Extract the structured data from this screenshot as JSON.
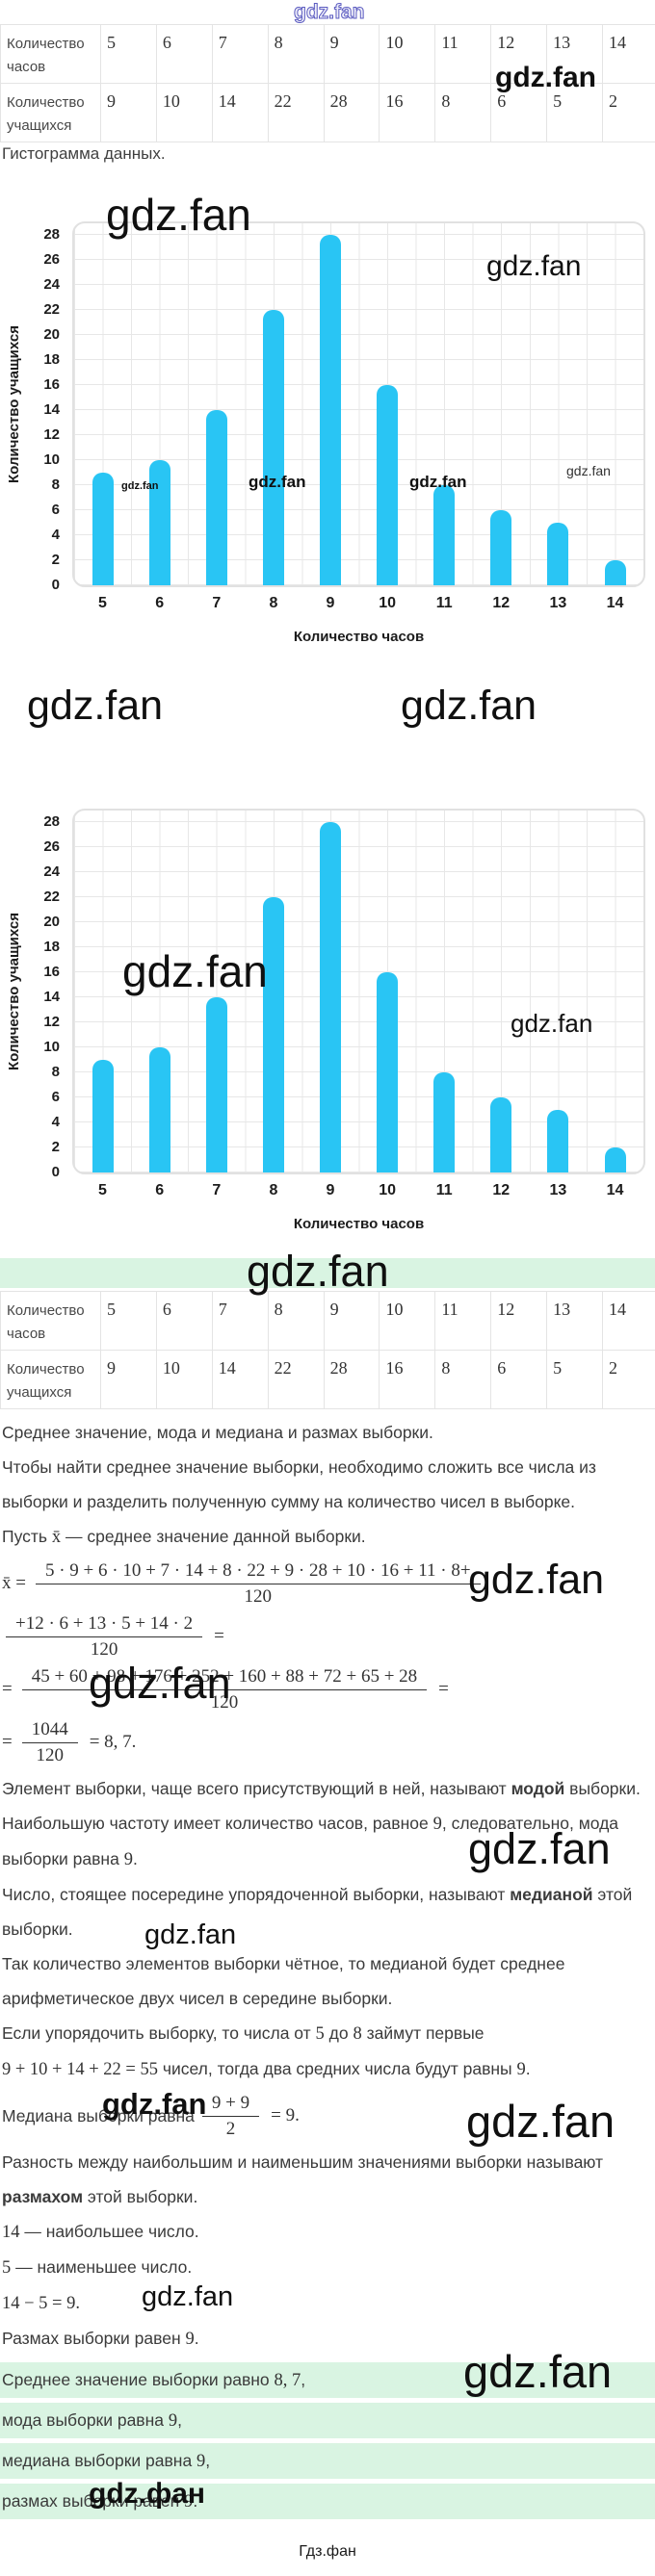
{
  "watermark": {
    "text": "gdz.fan",
    "cyrillic": "gdz.фан",
    "footer": "Гдз.фан"
  },
  "colors": {
    "bar": "#29c5f4",
    "grid": "#e7e7e7",
    "green_highlight": "#d9f4e2",
    "table_border": "#e4e4e4",
    "text": "#3b3b3b"
  },
  "table": {
    "row1_label": "Количество часов",
    "row2_label": "Количество учащихся",
    "hours": [
      5,
      6,
      7,
      8,
      9,
      10,
      11,
      12,
      13,
      14
    ],
    "students": [
      9,
      10,
      14,
      22,
      28,
      16,
      8,
      6,
      5,
      2
    ]
  },
  "caption": "Гистограмма данных.",
  "chart_data": [
    {
      "type": "bar",
      "categories": [
        5,
        6,
        7,
        8,
        9,
        10,
        11,
        12,
        13,
        14
      ],
      "values": [
        9,
        10,
        14,
        22,
        28,
        16,
        8,
        6,
        5,
        2
      ],
      "title": "",
      "xlabel": "Количество часов",
      "ylabel": "Количество учащихся",
      "ylim": [
        0,
        28
      ],
      "ytick_step": 2,
      "grid": true,
      "legend": false,
      "bar_color": "#29c5f4"
    },
    {
      "type": "bar",
      "categories": [
        5,
        6,
        7,
        8,
        9,
        10,
        11,
        12,
        13,
        14
      ],
      "values": [
        9,
        10,
        14,
        22,
        28,
        16,
        8,
        6,
        5,
        2
      ],
      "title": "",
      "xlabel": "Количество часов",
      "ylabel": "Количество учащихся",
      "ylim": [
        0,
        28
      ],
      "ytick_step": 2,
      "grid": true,
      "legend": false,
      "bar_color": "#29c5f4"
    }
  ],
  "solution": {
    "paras": [
      {
        "parts": [
          {
            "t": "Среднее значение, мода и медиана и размах выборки."
          }
        ]
      },
      {
        "parts": [
          {
            "t": "Чтобы найти среднее значение выборки, необходимо сложить все числа из выборки и разделить полученную сумму на количество чисел в выборке."
          }
        ]
      },
      {
        "parts": [
          {
            "t": "Пусть "
          },
          {
            "t": "x̄",
            "m": true
          },
          {
            "t": " — среднее значение данной выборки."
          }
        ]
      },
      {
        "parts": [
          {
            "t": "Элемент выборки, чаще всего присутствующий в ней, называют "
          },
          {
            "t": "модой",
            "b": true
          },
          {
            "t": " выборки."
          }
        ]
      },
      {
        "parts": [
          {
            "t": "Наибольшую частоту имеет количество часов, равное "
          },
          {
            "t": "9",
            "m": true
          },
          {
            "t": ", следовательно, мода выборки равна "
          },
          {
            "t": "9",
            "m": true
          },
          {
            "t": "."
          }
        ]
      },
      {
        "parts": [
          {
            "t": "Число, стоящее посередине упорядоченной выборки, называют "
          },
          {
            "t": "медианой",
            "b": true
          },
          {
            "t": " этой выборки."
          }
        ]
      },
      {
        "parts": [
          {
            "t": "Так количество элементов выборки чётное, то медианой будет среднее арифметическое двух чисел в середине выборки."
          }
        ]
      },
      {
        "parts": [
          {
            "t": "Если упорядочить выборку, то числа от "
          },
          {
            "t": "5",
            "m": true
          },
          {
            "t": " до "
          },
          {
            "t": "8",
            "m": true
          },
          {
            "t": " займут первые"
          }
        ]
      },
      {
        "parts": [
          {
            "t": "9 + 10 + 14 + 22 = 55",
            "m": true
          },
          {
            "t": " чисел, тогда два средних числа будут равны "
          },
          {
            "t": "9",
            "m": true
          },
          {
            "t": "."
          }
        ]
      },
      {
        "parts": [
          {
            "t": "Разность между наибольшим и наименьшим значениями выборки называют "
          },
          {
            "t": "размахом",
            "b": true
          },
          {
            "t": " этой выборки."
          }
        ]
      },
      {
        "parts": [
          {
            "t": "14",
            "m": true
          },
          {
            "t": " — наибольшее число."
          }
        ]
      },
      {
        "parts": [
          {
            "t": "5",
            "m": true
          },
          {
            "t": " — наименьшее число."
          }
        ]
      },
      {
        "parts": [
          {
            "t": "14 − 5 = 9.",
            "m": true
          }
        ]
      },
      {
        "parts": [
          {
            "t": "Размах выборки равен "
          },
          {
            "t": "9",
            "m": true
          },
          {
            "t": "."
          }
        ]
      }
    ],
    "mean_formula": {
      "lines": [
        {
          "prefix": "x̄ =",
          "num": "5 · 9 + 6 · 10 + 7 · 14 + 8 · 22 + 9 · 28 + 10 · 16 + 11 · 8+",
          "den": "120",
          "suffix": ""
        },
        {
          "prefix": "",
          "num": "+12 · 6 + 13 · 5 + 14 · 2",
          "den": "120",
          "suffix": "="
        },
        {
          "prefix": "=",
          "num": "45 + 60 + 98 + 176 + 252 + 160 + 88 + 72 + 65 + 28",
          "den": "120",
          "suffix": "="
        },
        {
          "prefix": "=",
          "num": "1044",
          "den": "120",
          "suffix": "= 8, 7."
        }
      ]
    },
    "median_formula": {
      "prefix": "Медиана выборки равна",
      "num": "9 + 9",
      "den": "2",
      "suffix": "= 9."
    }
  },
  "summary": {
    "lines": [
      {
        "parts": [
          {
            "t": "Среднее значение выборки равно "
          },
          {
            "t": "8, 7",
            "m": true
          },
          {
            "t": ","
          }
        ]
      },
      {
        "parts": [
          {
            "t": "мода выборки равна "
          },
          {
            "t": "9",
            "m": true
          },
          {
            "t": ","
          }
        ]
      },
      {
        "parts": [
          {
            "t": "медиана выборки равна "
          },
          {
            "t": "9",
            "m": true
          },
          {
            "t": ","
          }
        ]
      },
      {
        "parts": [
          {
            "t": "размах выборки равен "
          },
          {
            "t": "9",
            "m": true
          },
          {
            "t": "."
          }
        ]
      }
    ]
  }
}
